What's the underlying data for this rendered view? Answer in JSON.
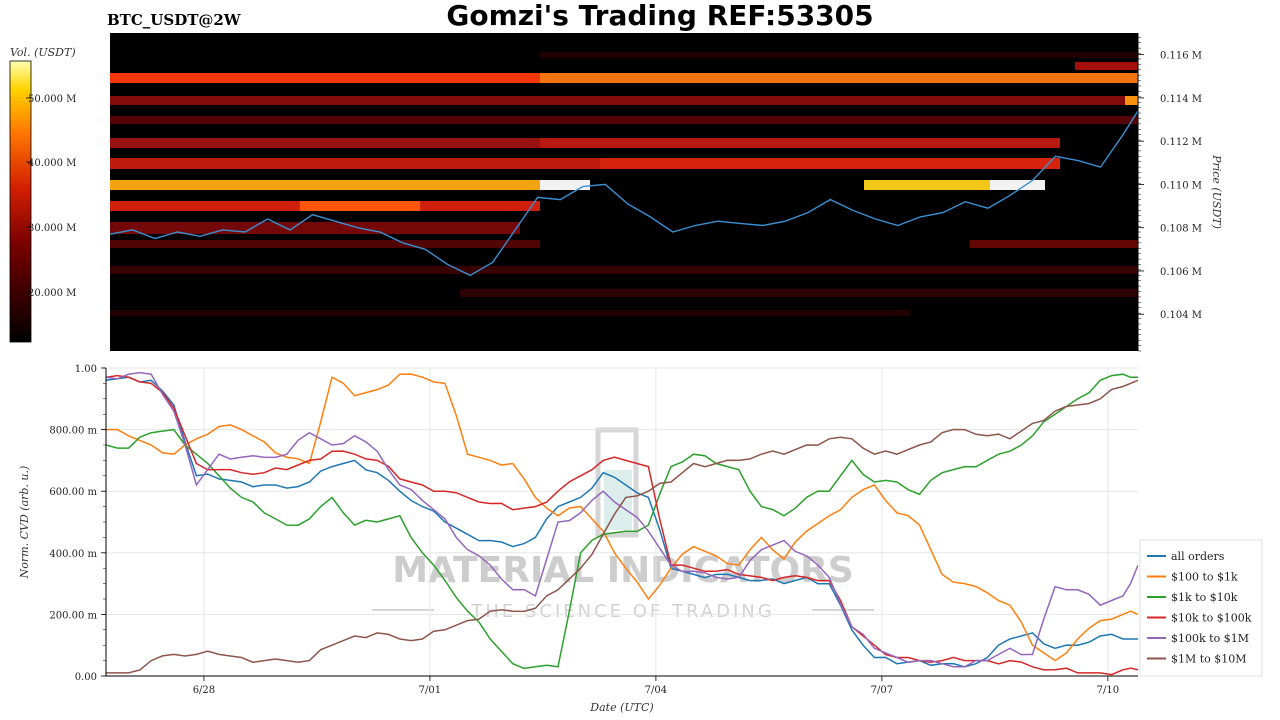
{
  "header": {
    "symbol": "BTC_USDT@2W",
    "title": "Gomzi's Trading REF:53305"
  },
  "watermark": {
    "line1": "MATERIAL INDICATORS",
    "line2": "THE SCIENCE OF TRADING"
  },
  "colors": {
    "all_orders": "#1f77b4",
    "r100_1k": "#ff7f0e",
    "r1k_10k": "#2ca02c",
    "r10k_100k": "#d62728",
    "r100k_1m": "#9467bd",
    "r1m_10m": "#8c564b",
    "price_line": "#3b8fd0"
  },
  "chart_data": [
    {
      "type": "heatmap",
      "title": "",
      "colorbar_label": "Vol. (USDT)",
      "colorbar_ticks": [
        "50.000 M",
        "40.000 M",
        "30.000 M",
        "20.000 M"
      ],
      "ylabel": "Price (USDT)",
      "yticks": [
        "0.116 M",
        "0.114 M",
        "0.112 M",
        "0.110 M",
        "0.108 M",
        "0.106 M",
        "0.104 M"
      ],
      "ylim": [
        102300,
        117000
      ],
      "price_series": {
        "name": "BTC price",
        "x": [
          0,
          0.3,
          0.6,
          0.9,
          1.2,
          1.5,
          1.8,
          2.1,
          2.4,
          2.7,
          3.0,
          3.3,
          3.6,
          3.9,
          4.2,
          4.5,
          4.8,
          5.1,
          5.4,
          5.7,
          6.0,
          6.3,
          6.6,
          6.9,
          7.2,
          7.5,
          7.8,
          8.1,
          8.4,
          8.7,
          9.0,
          9.3,
          9.6,
          9.9,
          10.2,
          10.5,
          10.8,
          11.1,
          11.4,
          11.7,
          12.0,
          12.3,
          12.6,
          12.9,
          13.2,
          13.5,
          13.7
        ],
        "y": [
          107700,
          107900,
          107500,
          107800,
          107600,
          107900,
          107800,
          108400,
          107900,
          108600,
          108300,
          108000,
          107800,
          107300,
          107000,
          106300,
          105800,
          106400,
          107900,
          109400,
          109300,
          109900,
          110000,
          109100,
          108500,
          107800,
          108100,
          108300,
          108200,
          108100,
          108300,
          108700,
          109300,
          108800,
          108400,
          108100,
          108500,
          108700,
          109200,
          108900,
          109500,
          110200,
          111300,
          111100,
          110800,
          112300,
          113400
        ]
      }
    },
    {
      "type": "line",
      "title": "",
      "xlabel": "Date (UTC)",
      "ylabel": "Norm. CVD (arb. u.)",
      "ylim": [
        0,
        1
      ],
      "yticks": [
        "0.00",
        "200.00 m",
        "400.00 m",
        "600.00 m",
        "800.00 m",
        "1.00"
      ],
      "xticks": [
        {
          "label": "6/28",
          "x": 1.3
        },
        {
          "label": "7/01",
          "x": 4.3
        },
        {
          "label": "7/04",
          "x": 7.3
        },
        {
          "label": "7/07",
          "x": 10.3
        },
        {
          "label": "7/10",
          "x": 13.3
        }
      ],
      "xlim": [
        0,
        13.7
      ],
      "legend_position": "lower-right",
      "x": [
        0,
        0.3,
        0.6,
        0.9,
        1.2,
        1.5,
        1.8,
        2.1,
        2.4,
        2.7,
        3.0,
        3.3,
        3.6,
        3.9,
        4.2,
        4.5,
        4.8,
        5.1,
        5.4,
        5.7,
        6.0,
        6.3,
        6.6,
        6.9,
        7.2,
        7.5,
        7.8,
        8.1,
        8.4,
        8.7,
        9.0,
        9.3,
        9.6,
        9.9,
        10.2,
        10.5,
        10.8,
        11.1,
        11.4,
        11.7,
        12.0,
        12.3,
        12.6,
        12.9,
        13.2,
        13.5,
        13.7
      ],
      "series": [
        {
          "name": "all orders",
          "color_key": "all_orders",
          "values": [
            0.96,
            0.97,
            0.96,
            0.88,
            0.65,
            0.64,
            0.63,
            0.62,
            0.61,
            0.63,
            0.68,
            0.7,
            0.66,
            0.6,
            0.55,
            0.5,
            0.46,
            0.44,
            0.42,
            0.45,
            0.55,
            0.58,
            0.66,
            0.62,
            0.58,
            0.35,
            0.33,
            0.33,
            0.32,
            0.31,
            0.3,
            0.32,
            0.3,
            0.15,
            0.06,
            0.04,
            0.05,
            0.04,
            0.03,
            0.06,
            0.12,
            0.14,
            0.09,
            0.1,
            0.13,
            0.12,
            0.12
          ]
        },
        {
          "name": "$100 to $1k",
          "color_key": "r100_1k",
          "values": [
            0.8,
            0.78,
            0.75,
            0.72,
            0.77,
            0.81,
            0.8,
            0.76,
            0.71,
            0.69,
            0.97,
            0.91,
            0.93,
            0.98,
            0.97,
            0.95,
            0.72,
            0.7,
            0.69,
            0.58,
            0.52,
            0.55,
            0.47,
            0.35,
            0.25,
            0.35,
            0.42,
            0.39,
            0.36,
            0.45,
            0.38,
            0.47,
            0.52,
            0.58,
            0.62,
            0.53,
            0.49,
            0.33,
            0.3,
            0.27,
            0.23,
            0.1,
            0.05,
            0.12,
            0.18,
            0.2,
            0.2
          ]
        },
        {
          "name": "$1k to $10k",
          "color_key": "r1k_10k",
          "values": [
            0.75,
            0.74,
            0.79,
            0.8,
            0.72,
            0.65,
            0.58,
            0.53,
            0.49,
            0.51,
            0.58,
            0.49,
            0.5,
            0.52,
            0.4,
            0.31,
            0.21,
            0.12,
            0.04,
            0.03,
            0.03,
            0.4,
            0.46,
            0.47,
            0.49,
            0.68,
            0.72,
            0.69,
            0.67,
            0.55,
            0.52,
            0.58,
            0.6,
            0.7,
            0.63,
            0.63,
            0.59,
            0.66,
            0.68,
            0.7,
            0.73,
            0.78,
            0.85,
            0.9,
            0.96,
            0.98,
            0.97
          ]
        },
        {
          "name": "$10k to $100k",
          "color_key": "r10k_100k",
          "values": [
            0.97,
            0.97,
            0.95,
            0.87,
            0.69,
            0.67,
            0.66,
            0.66,
            0.67,
            0.7,
            0.73,
            0.72,
            0.7,
            0.64,
            0.62,
            0.6,
            0.58,
            0.56,
            0.54,
            0.55,
            0.6,
            0.65,
            0.7,
            0.7,
            0.68,
            0.36,
            0.35,
            0.34,
            0.33,
            0.32,
            0.32,
            0.32,
            0.31,
            0.16,
            0.1,
            0.06,
            0.05,
            0.05,
            0.05,
            0.05,
            0.05,
            0.03,
            0.02,
            0.01,
            0.01,
            0.02,
            0.02
          ]
        },
        {
          "name": "$100k to $1M",
          "color_key": "r100k_1m",
          "values": [
            0.97,
            0.98,
            0.98,
            0.86,
            0.62,
            0.72,
            0.71,
            0.71,
            0.72,
            0.79,
            0.75,
            0.78,
            0.73,
            0.62,
            0.57,
            0.51,
            0.41,
            0.36,
            0.28,
            0.26,
            0.5,
            0.53,
            0.6,
            0.54,
            0.47,
            0.36,
            0.34,
            0.32,
            0.32,
            0.41,
            0.44,
            0.39,
            0.32,
            0.16,
            0.09,
            0.06,
            0.05,
            0.04,
            0.03,
            0.05,
            0.09,
            0.07,
            0.29,
            0.28,
            0.23,
            0.26,
            0.36
          ]
        },
        {
          "name": "$1M to $10M",
          "color_key": "r1m_10m",
          "values": [
            0.01,
            0.01,
            0.05,
            0.07,
            0.07,
            0.07,
            0.06,
            0.05,
            0.05,
            0.05,
            0.1,
            0.13,
            0.14,
            0.12,
            0.12,
            0.15,
            0.18,
            0.21,
            0.21,
            0.22,
            0.28,
            0.35,
            0.46,
            0.58,
            0.6,
            0.63,
            0.69,
            0.69,
            0.7,
            0.72,
            0.72,
            0.75,
            0.77,
            0.77,
            0.72,
            0.72,
            0.75,
            0.79,
            0.8,
            0.78,
            0.77,
            0.82,
            0.86,
            0.88,
            0.9,
            0.94,
            0.96
          ]
        }
      ]
    }
  ]
}
